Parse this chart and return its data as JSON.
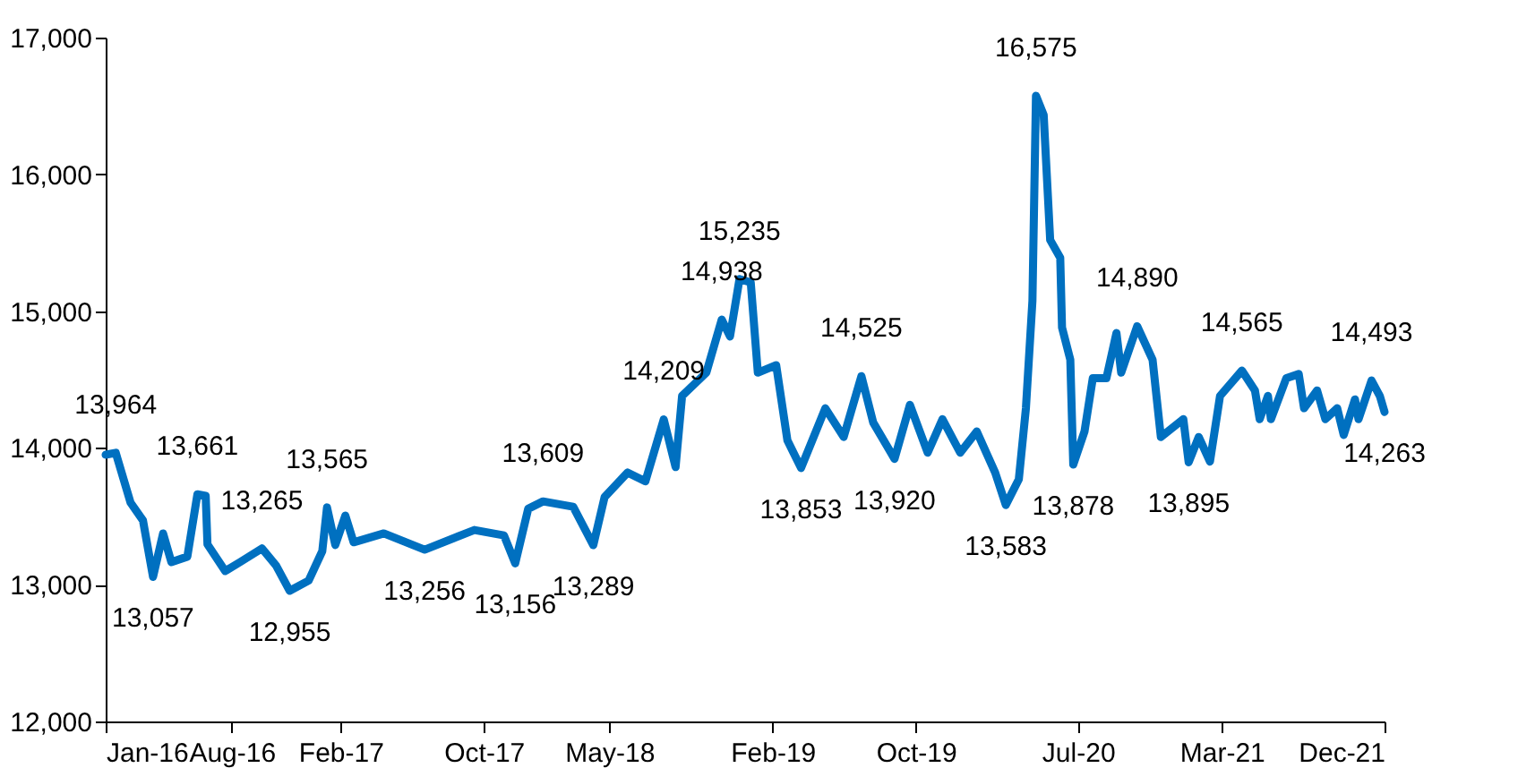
{
  "chart_data": {
    "type": "line",
    "x": [
      "2016-01-01",
      "2016-01-18",
      "2016-02-12",
      "2016-03-04",
      "2016-03-21",
      "2016-04-07",
      "2016-04-21",
      "2016-05-18",
      "2016-06-04",
      "2016-06-18",
      "2016-06-21",
      "2016-07-21",
      "2016-08-15",
      "2016-09-21",
      "2016-10-15",
      "2016-11-07",
      "2016-12-09",
      "2017-01-01",
      "2017-01-09",
      "2017-01-23",
      "2017-02-09",
      "2017-02-23",
      "2017-04-15",
      "2017-06-23",
      "2017-09-15",
      "2017-11-04",
      "2017-11-23",
      "2017-12-15",
      "2018-01-09",
      "2018-03-01",
      "2018-04-04",
      "2018-04-23",
      "2018-06-01",
      "2018-07-01",
      "2018-08-01",
      "2018-08-21",
      "2018-09-01",
      "2018-10-12",
      "2018-11-07",
      "2018-11-21",
      "2018-12-07",
      "2018-12-26",
      "2019-01-07",
      "2019-02-07",
      "2019-02-26",
      "2019-03-21",
      "2019-05-01",
      "2019-06-01",
      "2019-07-01",
      "2019-07-21",
      "2019-08-26",
      "2019-09-21",
      "2019-10-21",
      "2019-11-15",
      "2019-12-15",
      "2020-01-12",
      "2020-02-12",
      "2020-03-01",
      "2020-03-23",
      "2020-04-04",
      "2020-04-15",
      "2020-04-21",
      "2020-05-04",
      "2020-05-15",
      "2020-06-01",
      "2020-06-04",
      "2020-06-18",
      "2020-06-23",
      "2020-07-12",
      "2020-07-26",
      "2020-08-18",
      "2020-09-04",
      "2020-09-12",
      "2020-10-09",
      "2020-11-04",
      "2020-11-18",
      "2020-12-26",
      "2021-01-04",
      "2021-01-21",
      "2021-02-09",
      "2021-02-26",
      "2021-04-04",
      "2021-04-26",
      "2021-05-04",
      "2021-05-18",
      "2021-05-23",
      "2021-06-18",
      "2021-07-09",
      "2021-07-18",
      "2021-08-09",
      "2021-08-23",
      "2021-09-12",
      "2021-09-23",
      "2021-10-12",
      "2021-10-18",
      "2021-11-09",
      "2021-11-23",
      "2021-12-01"
    ],
    "series": [
      {
        "color": "#0070c0",
        "values": [
          13950,
          13964,
          13600,
          13470,
          13057,
          13375,
          13165,
          13205,
          13661,
          13650,
          13295,
          13100,
          13165,
          13265,
          13140,
          12955,
          13030,
          13245,
          13565,
          13290,
          13505,
          13310,
          13375,
          13256,
          13400,
          13360,
          13156,
          13555,
          13609,
          13570,
          13289,
          13640,
          13820,
          13755,
          14209,
          13860,
          14380,
          14550,
          14938,
          14815,
          15235,
          15210,
          14550,
          14605,
          14055,
          13853,
          14290,
          14080,
          14525,
          14185,
          13920,
          14315,
          13965,
          14210,
          13965,
          14120,
          13820,
          13583,
          13770,
          14290,
          15075,
          16575,
          16435,
          15520,
          15390,
          14880,
          14645,
          13878,
          14120,
          14510,
          14510,
          14840,
          14550,
          14890,
          14645,
          14080,
          14210,
          13895,
          14080,
          13900,
          14380,
          14565,
          14420,
          14210,
          14380,
          14210,
          14510,
          14540,
          14290,
          14420,
          14210,
          14290,
          14095,
          14355,
          14210,
          14493,
          14380,
          14263
        ]
      }
    ],
    "xlim": [
      "2016-01-01",
      "2021-12-01"
    ],
    "xticks": [
      {
        "value": "2016-01-01",
        "label": "Jan-16"
      },
      {
        "value": "2016-08-01",
        "label": "Aug-16"
      },
      {
        "value": "2017-02-01",
        "label": "Feb-17"
      },
      {
        "value": "2017-10-01",
        "label": "Oct-17"
      },
      {
        "value": "2018-05-01",
        "label": "May-18"
      },
      {
        "value": "2019-02-01",
        "label": "Feb-19"
      },
      {
        "value": "2019-10-01",
        "label": "Oct-19"
      },
      {
        "value": "2020-07-01",
        "label": "Jul-20"
      },
      {
        "value": "2021-03-01",
        "label": "Mar-21"
      },
      {
        "value": "2021-12-01",
        "label": "Dec-21"
      }
    ],
    "ylim": [
      12000,
      17000
    ],
    "yticks": [
      {
        "value": 12000,
        "label": "12,000"
      },
      {
        "value": 13000,
        "label": "13,000"
      },
      {
        "value": 14000,
        "label": "14,000"
      },
      {
        "value": 15000,
        "label": "15,000"
      },
      {
        "value": 16000,
        "label": "16,000"
      },
      {
        "value": 17000,
        "label": "17,000"
      }
    ],
    "annotations": [
      {
        "text": "13,964",
        "x": "2016-01-18",
        "y": 13964
      },
      {
        "text": "13,057",
        "x": "2016-03-21",
        "y": 13057
      },
      {
        "text": "13,661",
        "x": "2016-06-04",
        "y": 13661
      },
      {
        "text": "13,265",
        "x": "2016-09-21",
        "y": 13265
      },
      {
        "text": "12,955",
        "x": "2016-11-07",
        "y": 12955
      },
      {
        "text": "13,565",
        "x": "2017-01-09",
        "y": 13565
      },
      {
        "text": "13,256",
        "x": "2017-06-23",
        "y": 13256
      },
      {
        "text": "13,156",
        "x": "2017-11-23",
        "y": 13156
      },
      {
        "text": "13,609",
        "x": "2018-01-09",
        "y": 13609
      },
      {
        "text": "13,289",
        "x": "2018-04-04",
        "y": 13289
      },
      {
        "text": "14,209",
        "x": "2018-08-01",
        "y": 14209
      },
      {
        "text": "14,938",
        "x": "2018-11-07",
        "y": 14938
      },
      {
        "text": "15,235",
        "x": "2018-12-07",
        "y": 15235
      },
      {
        "text": "13,853",
        "x": "2019-03-21",
        "y": 13853
      },
      {
        "text": "14,525",
        "x": "2019-07-01",
        "y": 14525
      },
      {
        "text": "13,920",
        "x": "2019-08-26",
        "y": 13920
      },
      {
        "text": "13,583",
        "x": "2020-03-01",
        "y": 13583
      },
      {
        "text": "16,575",
        "x": "2020-04-21",
        "y": 16575
      },
      {
        "text": "13,878",
        "x": "2020-06-23",
        "y": 13878
      },
      {
        "text": "14,890",
        "x": "2020-10-09",
        "y": 14890
      },
      {
        "text": "13,895",
        "x": "2021-01-04",
        "y": 13895
      },
      {
        "text": "14,565",
        "x": "2021-04-04",
        "y": 14565
      },
      {
        "text": "14,493",
        "x": "2021-11-09",
        "y": 14493
      },
      {
        "text": "14,263",
        "x": "2021-12-01",
        "y": 14263
      }
    ],
    "grid": false,
    "marker": "none",
    "line_style": "solid"
  }
}
